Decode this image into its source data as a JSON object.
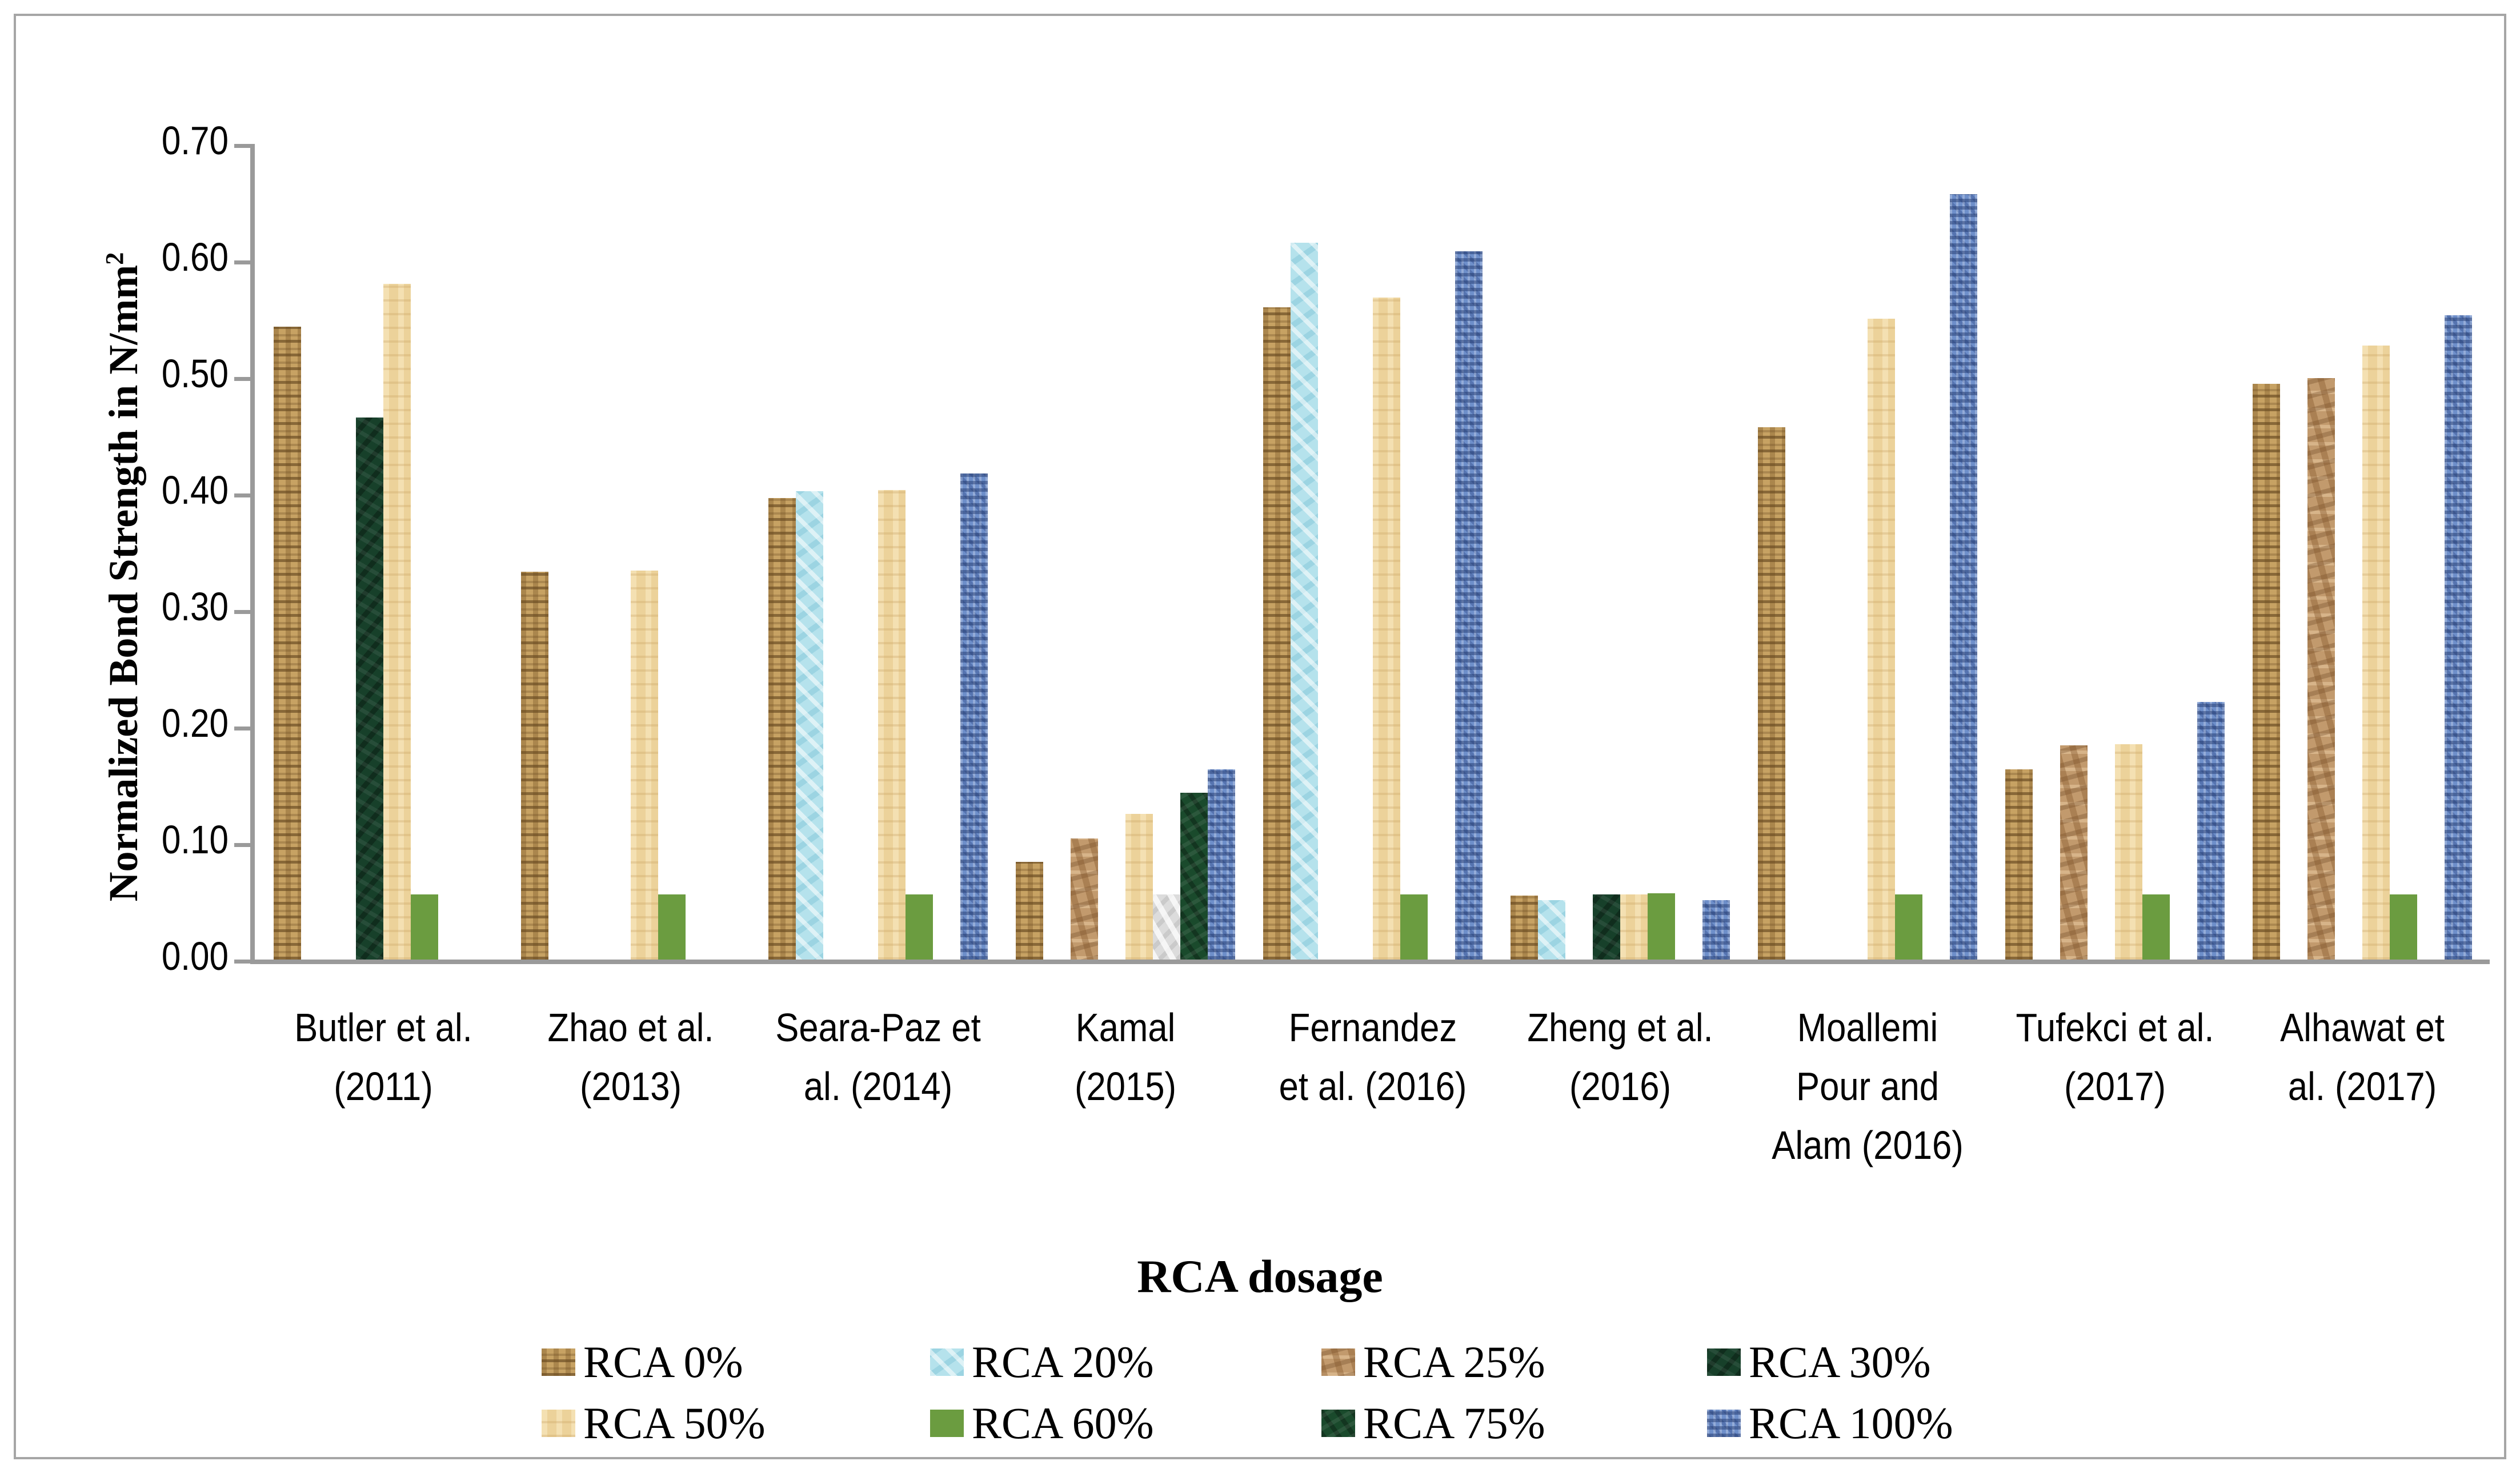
{
  "y_axis": {
    "label_main": "Normalized Bond Strength in N/mm",
    "label_sup": "2",
    "tick_labels": [
      "0.00",
      "0.10",
      "0.20",
      "0.30",
      "0.40",
      "0.50",
      "0.60",
      "0.70"
    ],
    "min": 0.0,
    "max": 0.7,
    "step": 0.1
  },
  "x_axis": {
    "label": "RCA dosage"
  },
  "legend": {
    "position": "bottom",
    "rows": [
      [
        {
          "label": "RCA 0%",
          "key": "rca0"
        },
        {
          "label": "RCA 20%",
          "key": "rca20"
        },
        {
          "label": "RCA 25%",
          "key": "rca25"
        },
        {
          "label": "RCA 30%",
          "key": "rca30"
        }
      ],
      [
        {
          "label": "RCA 50%",
          "key": "rca50"
        },
        {
          "label": "RCA 60%",
          "key": "rca60"
        },
        {
          "label": "RCA 75%",
          "key": "rca75"
        },
        {
          "label": "RCA 100%",
          "key": "rca100"
        }
      ]
    ]
  },
  "chart_data": {
    "type": "bar",
    "title": "",
    "xlabel": "RCA dosage",
    "ylabel": "Normalized Bond Strength in N/mm2",
    "ylim": [
      0,
      0.7
    ],
    "grid": false,
    "legend_position": "bottom",
    "categories": [
      {
        "lines": [
          "Butler et al.",
          "(2011)"
        ]
      },
      {
        "lines": [
          "Zhao et al.",
          "(2013)"
        ]
      },
      {
        "lines": [
          "Seara-Paz et",
          "al. (2014)"
        ]
      },
      {
        "lines": [
          "Kamal",
          "(2015)"
        ]
      },
      {
        "lines": [
          "Fernandez",
          "et al. (2016)"
        ]
      },
      {
        "lines": [
          "Zheng et al.",
          "(2016)"
        ]
      },
      {
        "lines": [
          "Moallemi",
          "Pour and",
          "Alam (2016)"
        ]
      },
      {
        "lines": [
          "Tufekci et al.",
          "(2017)"
        ]
      },
      {
        "lines": [
          "Alhawat et",
          "al. (2017)"
        ]
      }
    ],
    "series": [
      {
        "name": "RCA 0%",
        "key": "rca0",
        "values": [
          0.543,
          0.333,
          0.396,
          0.084,
          0.56,
          0.055,
          0.457,
          0.163,
          0.494
        ]
      },
      {
        "name": "RCA 20%",
        "key": "rca20",
        "values": [
          null,
          null,
          0.402,
          null,
          0.615,
          0.051,
          null,
          null,
          null
        ]
      },
      {
        "name": "RCA 25%",
        "key": "rca25",
        "values": [
          null,
          null,
          null,
          0.104,
          null,
          null,
          null,
          0.184,
          0.499
        ]
      },
      {
        "name": "RCA 30%",
        "key": "rca30",
        "values": [
          0.465,
          null,
          null,
          null,
          null,
          0.056,
          null,
          null,
          null
        ]
      },
      {
        "name": "RCA 50%",
        "key": "rca50",
        "values": [
          0.58,
          0.334,
          0.403,
          0.125,
          0.568,
          0.056,
          0.55,
          0.185,
          0.527
        ]
      },
      {
        "name": "RCA 60%",
        "key": "rca60",
        "values": [
          0.056,
          0.056,
          0.056,
          0.056,
          0.056,
          0.057,
          0.056,
          0.056,
          0.056
        ]
      },
      {
        "name": "RCA 75%",
        "key": "rca75",
        "values": [
          null,
          null,
          null,
          0.143,
          null,
          null,
          null,
          null,
          null
        ]
      },
      {
        "name": "RCA 100%",
        "key": "rca100",
        "values": [
          null,
          null,
          0.417,
          0.163,
          0.608,
          0.051,
          0.657,
          0.221,
          0.553
        ]
      }
    ],
    "point_color_overrides": [
      {
        "series": "RCA 60%",
        "category": "Kamal (2015)",
        "category_index": 3,
        "key": "gray60",
        "note": "RCA 60% bar in Kamal (2015) group is rendered as a light gray/marble bar in the source figure"
      }
    ]
  },
  "colors": {
    "rca0": "#c7a263",
    "rca20": "#b5e2ec",
    "rca25": "#c29a6d",
    "rca30": "#17402a",
    "rca50": "#ecd29a",
    "rca60": "#6b9c40",
    "rca75": "#1a4a2c",
    "rca100": "#6e8fca",
    "gray60": "#dcdcdc",
    "axis": "#9a9a9a",
    "border": "#a6a6a6",
    "text": "#000000"
  }
}
